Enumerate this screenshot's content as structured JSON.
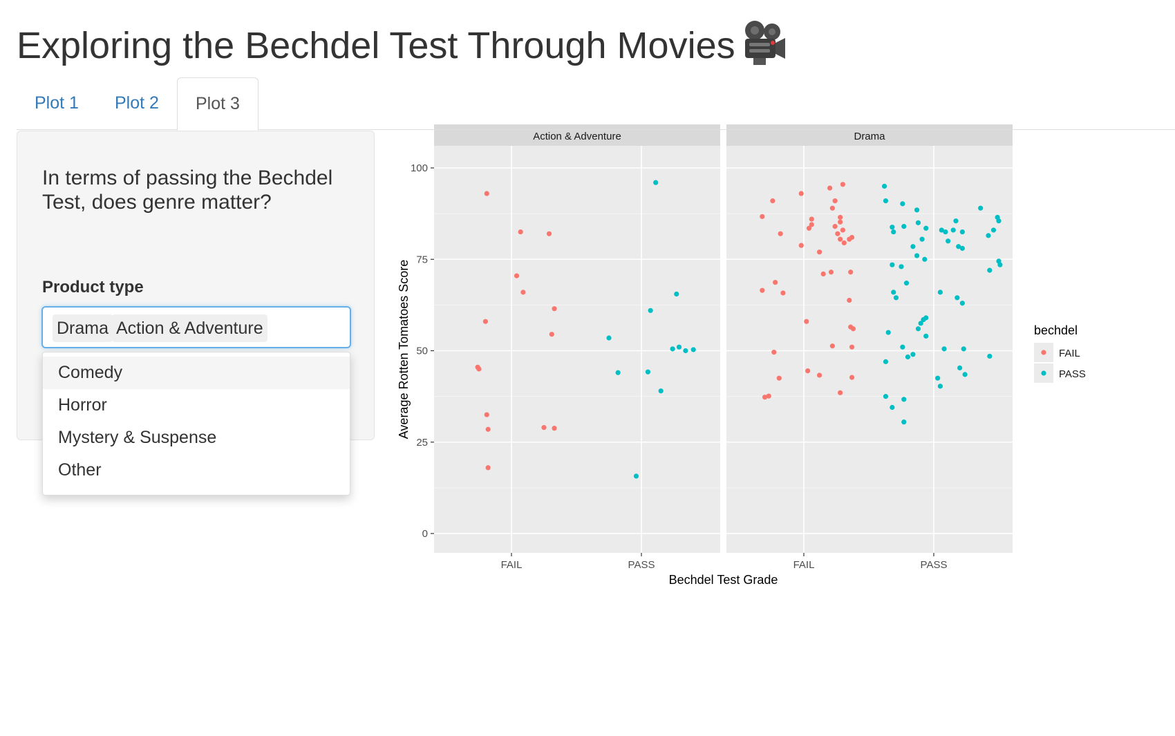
{
  "page": {
    "title": "Exploring the Bechdel Test Through Movies"
  },
  "icons": {
    "title_icon": "movie-camera-icon"
  },
  "tabs": [
    {
      "label": "Plot 1",
      "active": false
    },
    {
      "label": "Plot 2",
      "active": false
    },
    {
      "label": "Plot 3",
      "active": true
    }
  ],
  "sidebar": {
    "question": "In terms of passing the Bechdel Test, does genre matter?",
    "input_label": "Product type",
    "selected": [
      "Drama",
      "Action & Adventure"
    ],
    "options": [
      "Comedy",
      "Horror",
      "Mystery & Suspense",
      "Other"
    ]
  },
  "colors": {
    "FAIL": "#f8766d",
    "PASS": "#00bfc4",
    "panel_bg": "#ebebeb",
    "strip_bg": "#d9d9d9",
    "accent": "#337ab7",
    "focus": "#66afe9"
  },
  "chart_data": {
    "type": "scatter",
    "title": "",
    "xlabel": "Bechdel Test Grade",
    "ylabel": "Average Rotten Tomatoes Score",
    "ylim": [
      0,
      100
    ],
    "y_ticks": [
      "0",
      "25",
      "50",
      "75",
      "100"
    ],
    "x_categories": [
      "FAIL",
      "PASS"
    ],
    "grid": true,
    "legend": {
      "title": "bechdel",
      "placement": "right",
      "entries": [
        "FAIL",
        "PASS"
      ]
    },
    "panels": [
      {
        "name": "Action & Adventure",
        "series": [
          {
            "name": "FAIL",
            "points": [
              [
                0.81,
                93
              ],
              [
                1.07,
                82.5
              ],
              [
                1.29,
                82
              ],
              [
                1.04,
                70.5
              ],
              [
                1.09,
                66
              ],
              [
                1.33,
                61.5
              ],
              [
                1.31,
                54.5
              ],
              [
                0.8,
                58
              ],
              [
                0.74,
                45.5
              ],
              [
                0.75,
                45
              ],
              [
                0.81,
                32.5
              ],
              [
                0.82,
                28.5
              ],
              [
                1.25,
                29
              ],
              [
                1.33,
                28.8
              ],
              [
                0.82,
                18
              ]
            ]
          },
          {
            "name": "PASS",
            "points": [
              [
                2.11,
                96
              ],
              [
                2.27,
                65.5
              ],
              [
                2.07,
                61
              ],
              [
                1.75,
                53.5
              ],
              [
                1.82,
                44
              ],
              [
                2.05,
                44.2
              ],
              [
                2.15,
                39
              ],
              [
                2.24,
                50.5
              ],
              [
                2.29,
                51
              ],
              [
                2.34,
                50
              ],
              [
                2.4,
                50.3
              ],
              [
                1.96,
                15.7
              ]
            ]
          }
        ]
      },
      {
        "name": "Drama",
        "series": [
          {
            "name": "FAIL",
            "points": [
              [
                1.3,
                95.5
              ],
              [
                1.2,
                94.5
              ],
              [
                0.98,
                93
              ],
              [
                0.76,
                91
              ],
              [
                1.24,
                91
              ],
              [
                1.22,
                89
              ],
              [
                1.28,
                86.5
              ],
              [
                0.68,
                86.7
              ],
              [
                1.06,
                86
              ],
              [
                1.28,
                85.2
              ],
              [
                1.24,
                84
              ],
              [
                1.06,
                84.5
              ],
              [
                1.04,
                83.5
              ],
              [
                1.3,
                83
              ],
              [
                0.82,
                82
              ],
              [
                1.26,
                82
              ],
              [
                1.28,
                80.5
              ],
              [
                1.37,
                81
              ],
              [
                1.35,
                80.5
              ],
              [
                0.98,
                78.8
              ],
              [
                1.31,
                79.5
              ],
              [
                1.12,
                77
              ],
              [
                1.15,
                71
              ],
              [
                1.21,
                71.5
              ],
              [
                1.36,
                71.5
              ],
              [
                0.68,
                66.5
              ],
              [
                0.84,
                65.8
              ],
              [
                0.78,
                68.7
              ],
              [
                1.35,
                63.8
              ],
              [
                1.02,
                58
              ],
              [
                1.36,
                56.5
              ],
              [
                1.38,
                56
              ],
              [
                0.77,
                49.6
              ],
              [
                1.22,
                51.3
              ],
              [
                1.37,
                51
              ],
              [
                1.03,
                44.5
              ],
              [
                1.12,
                43.3
              ],
              [
                1.37,
                42.7
              ],
              [
                0.81,
                42.5
              ],
              [
                0.7,
                37.3
              ],
              [
                0.73,
                37.6
              ],
              [
                1.28,
                38.5
              ]
            ]
          },
          {
            "name": "PASS",
            "points": [
              [
                1.62,
                95
              ],
              [
                1.63,
                91
              ],
              [
                1.68,
                83.8
              ],
              [
                1.76,
                90.2
              ],
              [
                1.87,
                88.5
              ],
              [
                1.69,
                82.5
              ],
              [
                1.77,
                84
              ],
              [
                1.88,
                85
              ],
              [
                1.94,
                83.5
              ],
              [
                1.91,
                80.5
              ],
              [
                1.84,
                78.5
              ],
              [
                1.87,
                76
              ],
              [
                1.93,
                75
              ],
              [
                2.06,
                83
              ],
              [
                2.09,
                82.5
              ],
              [
                2.17,
                85.5
              ],
              [
                2.15,
                83
              ],
              [
                2.22,
                82.5
              ],
              [
                2.11,
                80
              ],
              [
                2.19,
                78.5
              ],
              [
                2.22,
                78
              ],
              [
                2.36,
                89
              ],
              [
                2.49,
                86.5
              ],
              [
                2.5,
                85.5
              ],
              [
                2.46,
                83
              ],
              [
                2.42,
                81.5
              ],
              [
                2.5,
                74.5
              ],
              [
                2.51,
                73.5
              ],
              [
                2.43,
                72
              ],
              [
                1.68,
                73.5
              ],
              [
                1.75,
                73
              ],
              [
                1.69,
                66
              ],
              [
                1.71,
                64.5
              ],
              [
                1.79,
                68.5
              ],
              [
                2.05,
                66
              ],
              [
                2.18,
                64.5
              ],
              [
                2.22,
                63
              ],
              [
                1.65,
                55
              ],
              [
                1.88,
                56
              ],
              [
                1.92,
                58.5
              ],
              [
                1.94,
                59
              ],
              [
                1.9,
                57.5
              ],
              [
                1.94,
                54
              ],
              [
                1.76,
                51
              ],
              [
                1.84,
                49
              ],
              [
                1.8,
                48.3
              ],
              [
                1.63,
                47
              ],
              [
                2.08,
                50.5
              ],
              [
                2.23,
                50.5
              ],
              [
                2.43,
                48.5
              ],
              [
                2.2,
                45.3
              ],
              [
                2.24,
                43.5
              ],
              [
                2.03,
                42.5
              ],
              [
                2.05,
                40.3
              ],
              [
                1.63,
                37.5
              ],
              [
                1.68,
                34.5
              ],
              [
                1.77,
                36.7
              ],
              [
                1.77,
                30.5
              ]
            ]
          }
        ]
      }
    ]
  }
}
